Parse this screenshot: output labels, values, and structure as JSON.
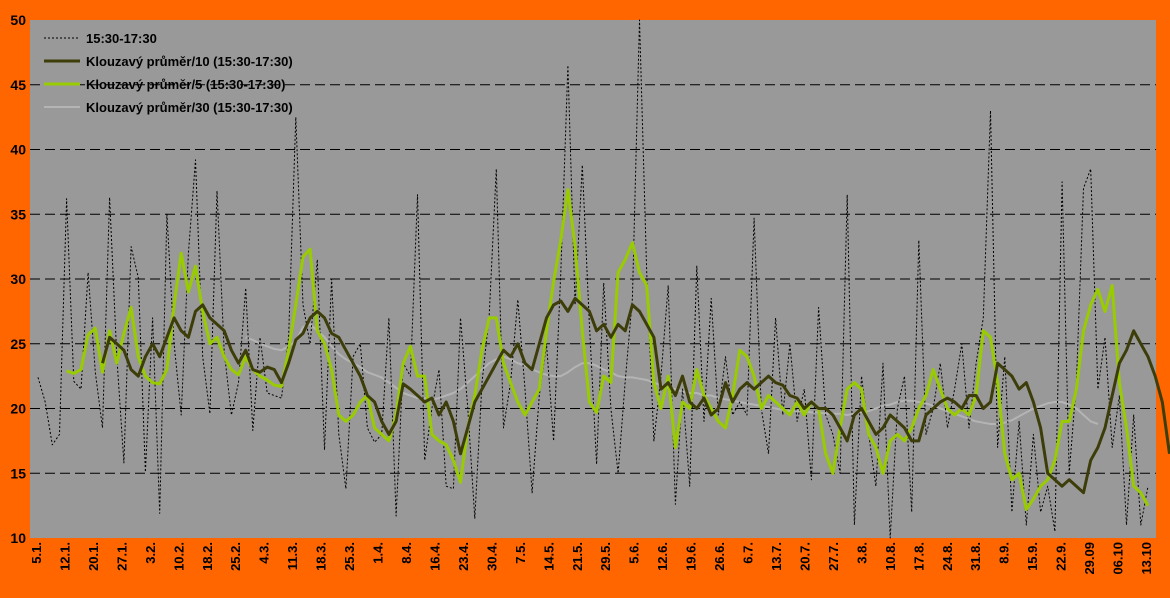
{
  "chart_data": {
    "type": "line",
    "title": "",
    "xlabel": "",
    "ylabel": "",
    "ylim": [
      10,
      50
    ],
    "yticks": [
      10,
      15,
      20,
      25,
      30,
      35,
      40,
      45,
      50
    ],
    "grid": "horizontal-dashed",
    "legend_position": "top-left",
    "x_tick_labels": [
      "5.1.",
      "12.1.",
      "20.1.",
      "27.1.",
      "3.2.",
      "10.2.",
      "18.2.",
      "25.2.",
      "4.3.",
      "11.3.",
      "18.3.",
      "25.3.",
      "1.4.",
      "8.4.",
      "16.4.",
      "23.4.",
      "30.4.",
      "7.5.",
      "14.5.",
      "21.5.",
      "29.5.",
      "5.6.",
      "12.6.",
      "19.6.",
      "26.6.",
      "6.7.",
      "13.7.",
      "20.7.",
      "27.7.",
      "3.8.",
      "10.8.",
      "17.8.",
      "24.8.",
      "31.8.",
      "8.9.",
      "15.9.",
      "22.9.",
      "29.09",
      "06.10",
      "13.10"
    ],
    "series": [
      {
        "name": "15:30-17:30",
        "color": "#000000",
        "style": "dotted",
        "values": [
          22.4,
          20.5,
          17.2,
          18.0,
          36.2,
          22.1,
          21.5,
          30.5,
          22.8,
          18.5,
          36.3,
          24.0,
          15.8,
          32.5,
          30.1,
          15.1,
          27.0,
          11.9,
          35.0,
          25.0,
          19.5,
          32.0,
          39.2,
          24.0,
          19.6,
          36.8,
          24.4,
          19.5,
          22.0,
          29.3,
          18.3,
          25.5,
          21.2,
          21.0,
          20.8,
          25.5,
          42.5,
          28.0,
          25.0,
          31.5,
          16.8,
          30.0,
          18.0,
          13.8,
          24.0,
          25.0,
          18.5,
          17.4,
          18.0,
          27.0,
          11.7,
          23.5,
          22.5,
          36.5,
          16.0,
          20.0,
          23.0,
          14.0,
          13.8,
          27.0,
          20.1,
          11.5,
          22.0,
          27.2,
          38.5,
          18.5,
          22.0,
          28.4,
          21.5,
          13.5,
          21.0,
          25.0,
          17.5,
          30.5,
          46.5,
          28.0,
          38.8,
          26.5,
          15.7,
          29.7,
          20.0,
          15.0,
          22.1,
          28.5,
          50.0,
          30.5,
          17.5,
          22.5,
          29.5,
          12.6,
          21.5,
          14.0,
          31.0,
          19.0,
          28.5,
          19.5,
          24.0,
          19.5,
          20.5,
          19.5,
          34.7,
          20.0,
          16.5,
          27.0,
          19.5,
          25.0,
          19.0,
          21.5,
          14.5,
          27.8,
          19.5,
          18.0,
          15.0,
          36.5,
          11.0,
          22.5,
          18.0,
          14.0,
          23.5,
          10.0,
          20.0,
          22.5,
          12.0,
          33.0,
          18.0,
          20.0,
          23.5,
          18.5,
          21.5,
          25.0,
          18.5,
          23.5,
          27.0,
          43.0,
          17.0,
          24.0,
          12.0,
          19.0,
          11.0,
          18.0,
          12.0,
          14.0,
          10.5,
          37.5,
          15.0,
          22.0,
          37.0,
          38.5,
          21.5,
          25.5,
          17.0,
          21.0,
          11.0,
          19.5,
          11.0,
          14.0
        ]
      },
      {
        "name": "Klouzavý průměr/10 (15:30-17:30)",
        "color": "#3d3d0a",
        "style": "solid-thick",
        "values": [
          null,
          null,
          null,
          null,
          null,
          null,
          null,
          null,
          null,
          23.5,
          25.5,
          25.0,
          24.5,
          23.0,
          22.5,
          24.0,
          25.0,
          24.0,
          25.5,
          27.0,
          26.0,
          25.5,
          27.5,
          28.0,
          27.0,
          26.5,
          26.0,
          24.5,
          23.5,
          24.5,
          23.0,
          22.8,
          23.2,
          23.0,
          22.0,
          23.5,
          25.3,
          25.8,
          27.0,
          27.5,
          27.0,
          25.8,
          25.5,
          24.5,
          23.5,
          22.5,
          21.0,
          20.5,
          19.0,
          18.0,
          19.0,
          21.9,
          21.5,
          21.0,
          20.5,
          20.8,
          19.5,
          20.5,
          19.0,
          16.5,
          18.5,
          20.5,
          21.5,
          22.5,
          23.5,
          24.5,
          24.0,
          25.0,
          23.5,
          23.0,
          25.0,
          27.0,
          28.0,
          28.3,
          27.5,
          28.5,
          28.0,
          27.5,
          26.0,
          26.5,
          25.5,
          26.5,
          26.0,
          28.0,
          27.5,
          26.5,
          25.5,
          21.5,
          22.0,
          21.0,
          22.5,
          20.5,
          20.0,
          20.8,
          19.5,
          20.0,
          22.0,
          20.5,
          21.5,
          22.0,
          21.5,
          22.0,
          22.5,
          22.0,
          21.8,
          21.0,
          20.8,
          20.0,
          20.5,
          20.0,
          20.0,
          19.5,
          18.5,
          17.5,
          19.5,
          20.0,
          19.0,
          18.0,
          18.5,
          19.5,
          19.0,
          18.5,
          17.5,
          17.5,
          19.5,
          20.0,
          20.5,
          20.8,
          20.5,
          20.0,
          21.0,
          21.0,
          20.0,
          20.5,
          23.5,
          23.0,
          22.5,
          21.5,
          22.0,
          20.5,
          18.5,
          15.0,
          14.5,
          14.0,
          14.5,
          14.0,
          13.5,
          16.0,
          17.0,
          18.5,
          21.0,
          23.5,
          24.5,
          26.0,
          25.0,
          24.0,
          22.5,
          20.5,
          16.5
        ]
      },
      {
        "name": "Klouzavý průměr/5 (15:30-17:30)",
        "color": "#99cc00",
        "style": "solid-thick",
        "values": [
          null,
          null,
          null,
          null,
          22.9,
          22.7,
          23.0,
          25.7,
          26.2,
          22.8,
          26.0,
          23.5,
          25.8,
          27.8,
          24.0,
          22.5,
          22.0,
          21.9,
          23.0,
          28.0,
          32.0,
          29.0,
          31.0,
          27.5,
          25.0,
          25.5,
          24.0,
          23.0,
          22.6,
          24.0,
          23.0,
          22.5,
          22.2,
          21.8,
          21.7,
          24.5,
          28.0,
          31.7,
          32.3,
          26.0,
          25.0,
          23.0,
          19.5,
          19.0,
          19.5,
          20.5,
          21.0,
          18.5,
          18.0,
          17.5,
          19.5,
          23.5,
          24.8,
          22.5,
          22.5,
          18.0,
          17.5,
          17.2,
          16.0,
          14.3,
          18.5,
          21.0,
          24.5,
          27.0,
          27.0,
          23.5,
          22.0,
          20.5,
          19.5,
          20.5,
          21.5,
          26.0,
          29.8,
          33.0,
          36.9,
          32.5,
          26.0,
          20.5,
          19.7,
          22.5,
          22.0,
          30.5,
          31.5,
          32.8,
          30.5,
          29.5,
          22.0,
          20.0,
          22.5,
          17.0,
          20.5,
          20.0,
          23.0,
          21.0,
          20.0,
          19.0,
          18.5,
          21.0,
          24.5,
          24.0,
          22.5,
          20.0,
          21.0,
          20.5,
          20.0,
          19.5,
          20.5,
          19.5,
          20.5,
          20.0,
          16.5,
          15.0,
          18.5,
          21.5,
          22.0,
          21.5,
          18.0,
          17.0,
          15.0,
          17.5,
          18.0,
          17.5,
          18.5,
          20.0,
          21.0,
          23.0,
          21.5,
          20.0,
          19.5,
          20.0,
          19.5,
          21.0,
          26.0,
          25.5,
          22.0,
          16.5,
          14.5,
          15.0,
          12.2,
          13.0,
          14.0,
          14.5,
          16.0,
          19.0,
          19.0,
          21.5,
          26.0,
          28.0,
          29.2,
          27.5,
          29.5,
          22.0,
          18.5,
          14.0,
          13.5,
          12.5
        ]
      },
      {
        "name": "Klouzavý průměr/30 (15:30-17:30)",
        "color": "#b4b4b4",
        "style": "solid",
        "values": [
          null,
          null,
          null,
          null,
          null,
          null,
          null,
          null,
          null,
          null,
          null,
          null,
          null,
          null,
          null,
          null,
          null,
          null,
          null,
          null,
          null,
          null,
          null,
          null,
          null,
          null,
          null,
          null,
          null,
          25.5,
          25.3,
          25.0,
          24.8,
          24.6,
          24.5,
          24.8,
          25.2,
          26.3,
          26.5,
          26.0,
          25.5,
          24.8,
          24.2,
          23.8,
          23.5,
          23.2,
          22.8,
          22.6,
          22.4,
          22.0,
          21.6,
          21.2,
          21.0,
          20.8,
          20.8,
          20.7,
          20.8,
          21.0,
          21.2,
          21.5,
          22.0,
          22.5,
          23.0,
          23.5,
          23.8,
          24.0,
          23.8,
          23.5,
          23.3,
          23.0,
          22.8,
          22.6,
          22.5,
          22.5,
          22.8,
          23.2,
          23.5,
          23.5,
          23.3,
          23.0,
          22.8,
          22.5,
          22.4,
          22.4,
          22.3,
          22.2,
          22.0,
          21.8,
          21.6,
          21.5,
          21.3,
          21.2,
          21.2,
          21.0,
          21.0,
          20.8,
          20.7,
          20.6,
          20.5,
          20.4,
          20.3,
          20.2,
          20.1,
          20.0,
          19.9,
          19.8,
          19.8,
          19.8,
          19.7,
          19.7,
          19.6,
          19.6,
          19.6,
          19.5,
          19.6,
          19.7,
          19.8,
          20.0,
          20.2,
          20.3,
          20.5,
          20.6,
          20.6,
          20.5,
          20.4,
          20.2,
          20.0,
          19.8,
          19.6,
          19.4,
          19.2,
          19.0,
          18.9,
          18.8,
          18.8,
          18.9,
          19.1,
          19.4,
          19.7,
          20.0,
          20.2,
          20.4,
          20.5,
          20.5,
          20.3,
          20.0,
          19.5,
          19.0,
          18.8
        ]
      }
    ]
  }
}
